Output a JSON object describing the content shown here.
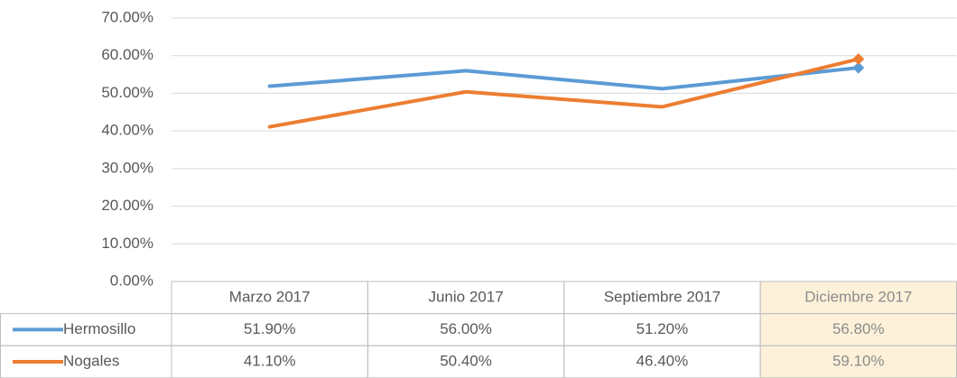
{
  "chart_data": {
    "type": "line",
    "categories": [
      "Marzo 2017",
      "Junio 2017",
      "Septiembre 2017",
      "Diciembre 2017"
    ],
    "series": [
      {
        "name": "Hermosillo",
        "color": "#5b9bd5",
        "values": [
          51.9,
          56.0,
          51.2,
          56.8
        ],
        "value_labels": [
          "51.90%",
          "56.00%",
          "51.20%",
          "56.80%"
        ]
      },
      {
        "name": "Nogales",
        "color": "#ed7d31",
        "values": [
          41.1,
          50.4,
          46.4,
          59.1
        ],
        "value_labels": [
          "41.10%",
          "50.40%",
          "46.40%",
          "59.10%"
        ]
      }
    ],
    "ylim": [
      0,
      70
    ],
    "yticks": [
      {
        "value": 0,
        "label": "0.00%"
      },
      {
        "value": 10,
        "label": "10.00%"
      },
      {
        "value": 20,
        "label": "20.00%"
      },
      {
        "value": 30,
        "label": "30.00%"
      },
      {
        "value": 40,
        "label": "40.00%"
      },
      {
        "value": 50,
        "label": "50.00%"
      },
      {
        "value": 60,
        "label": "60.00%"
      },
      {
        "value": 70,
        "label": "70.00%"
      }
    ],
    "grid": true
  }
}
